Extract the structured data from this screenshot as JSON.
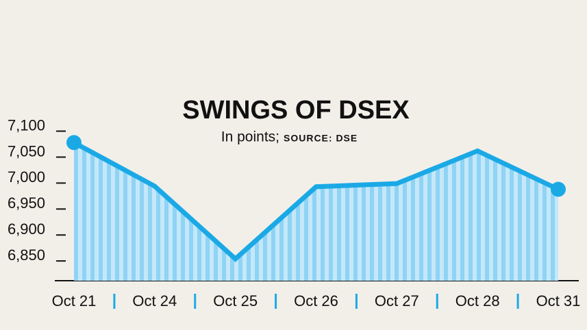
{
  "chart_data": {
    "type": "line",
    "title": "SWINGS OF DSEX",
    "subtitle": "In points;",
    "source": "SOURCE: DSE",
    "categories": [
      "Oct 21",
      "Oct 24",
      "Oct 25",
      "Oct 26",
      "Oct 27",
      "Oct 28",
      "Oct 31"
    ],
    "series": [
      {
        "name": "DSEX",
        "color": "#1ba9e6",
        "values": [
          7074,
          6990,
          6850,
          6989,
          6995,
          7058,
          6984
        ]
      }
    ],
    "ylim": [
      6808,
      7135
    ],
    "yticks": [
      {
        "value": 7100,
        "label": "7,100"
      },
      {
        "value": 7050,
        "label": "7,050"
      },
      {
        "value": 7000,
        "label": "7,000"
      },
      {
        "value": 6950,
        "label": "6,950"
      },
      {
        "value": 6900,
        "label": "6,900"
      },
      {
        "value": 6850,
        "label": "6,850"
      }
    ]
  }
}
